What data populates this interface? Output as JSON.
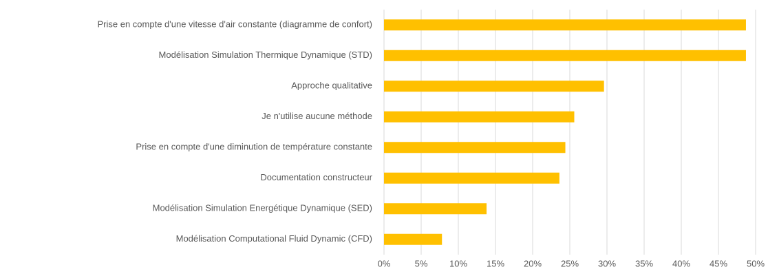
{
  "chart_data": {
    "type": "barh",
    "categories": [
      "Prise en compte d'une vitesse d'air constante (diagramme de confort)",
      "Modélisation Simulation Thermique Dynamique (STD)",
      "Approche qualitative",
      "Je n'utilise aucune méthode",
      "Prise en compte d'une diminution de température constante",
      "Documentation constructeur",
      "Modélisation Simulation Energétique Dynamique (SED)",
      "Modélisation Computational Fluid Dynamic (CFD)"
    ],
    "values": [
      48.7,
      48.7,
      29.6,
      25.6,
      24.4,
      23.6,
      13.8,
      7.8
    ],
    "color": "#ffc000",
    "xlim": [
      0,
      50
    ],
    "xticks": [
      {
        "value": 0,
        "label": "0%"
      },
      {
        "value": 5,
        "label": "5%"
      },
      {
        "value": 10,
        "label": "10%"
      },
      {
        "value": 15,
        "label": "15%"
      },
      {
        "value": 20,
        "label": "20%"
      },
      {
        "value": 25,
        "label": "25%"
      },
      {
        "value": 30,
        "label": "30%"
      },
      {
        "value": 35,
        "label": "35%"
      },
      {
        "value": 40,
        "label": "40%"
      },
      {
        "value": 45,
        "label": "45%"
      },
      {
        "value": 50,
        "label": "50%"
      }
    ],
    "grid": true
  }
}
